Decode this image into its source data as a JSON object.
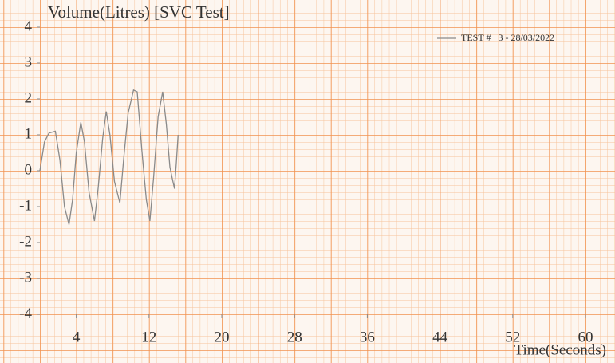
{
  "chart_data": {
    "type": "line",
    "title": "Volume(Litres) [SVC Test]",
    "x_label": "Time(Seconds)",
    "x": [
      0,
      0.5,
      1.0,
      1.7,
      2.2,
      2.7,
      3.2,
      3.6,
      4.0,
      4.5,
      4.9,
      5.4,
      6.0,
      6.4,
      6.9,
      7.3,
      7.7,
      8.2,
      8.8,
      9.2,
      9.7,
      10.3,
      10.7,
      11.2,
      11.7,
      12.1,
      12.5,
      13.0,
      13.5,
      13.9,
      14.3,
      14.8,
      15.0,
      15.2
    ],
    "series": [
      {
        "name": "TEST #   3 - 28/03/2022",
        "color": "#8a8a8a",
        "values": [
          0,
          0.8,
          1.05,
          1.1,
          0.3,
          -1.0,
          -1.5,
          -0.8,
          0.5,
          1.35,
          0.8,
          -0.6,
          -1.4,
          -0.5,
          0.9,
          1.65,
          1.0,
          -0.3,
          -0.9,
          0.3,
          1.6,
          2.25,
          2.2,
          0.6,
          -0.8,
          -1.4,
          -0.2,
          1.5,
          2.2,
          1.3,
          0.1,
          -0.5,
          0.2,
          1.0
        ]
      }
    ],
    "xlim": [
      0,
      60
    ],
    "ylim": [
      -4,
      4
    ],
    "xticks": [
      4,
      12,
      20,
      28,
      36,
      44,
      52,
      60
    ],
    "yticks": [
      -4,
      -3,
      -2,
      -1,
      0,
      1,
      2,
      3,
      4
    ],
    "legend": "upper right"
  }
}
